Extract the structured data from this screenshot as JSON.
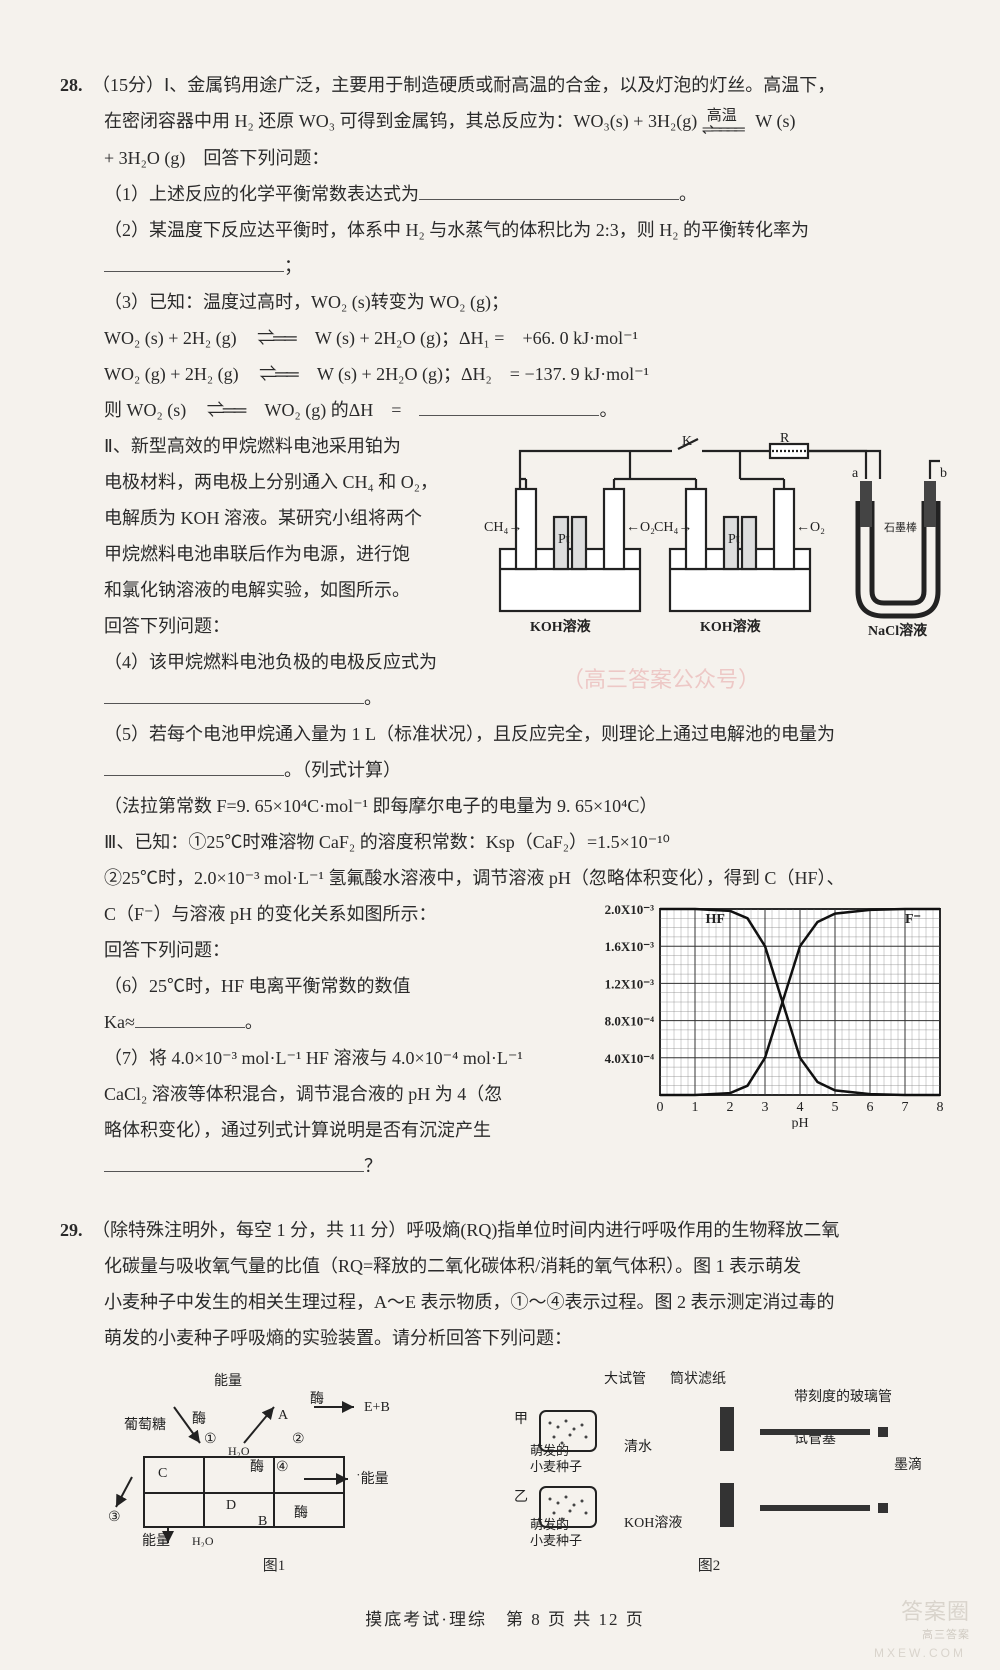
{
  "footer": {
    "text": "摸底考试·理综　第 8 页 共 12 页"
  },
  "watermark": {
    "logo": "答案圈",
    "top": "高三答案",
    "sub": "MXEW.COM",
    "mid": "（高三答案公众号）"
  },
  "q28": {
    "num": "28.",
    "header": "（15分）Ⅰ、金属钨用途广泛，主要用于制造硬质或耐高温的合金，以及灯泡的灯丝。高温下，",
    "l1a": "在密闭容器中用 H₂ 还原 WO₃ 可得到金属钨，其总反应为：WO₃(s) + 3H₂(g)",
    "l1b": "W (s)",
    "l1_condition": "高温",
    "l1_arrow": "⇌",
    "l2": "+ 3H₂O (g)　回答下列问题：",
    "p1": "（1）上述反应的化学平衡常数表达式为",
    "p2a": "（2）某温度下反应达平衡时，体系中 H₂ 与水蒸气的体积比为 2:3，则 H₂ 的平衡转化率为",
    "p2b": "；",
    "p3a": "（3）已知：温度过高时，WO₂ (s)转变为 WO₂ (g)；",
    "p3b": "WO₂ (s) + 2H₂ (g)",
    "p3b_arrow": "⇌",
    "p3b_rhs": "W (s) + 2H₂O (g)；ΔH₁ =　+66. 0 kJ·mol⁻¹",
    "p3c": "WO₂ (g) + 2H₂ (g)",
    "p3c_arrow": "⇌",
    "p3c_rhs": "W (s) + 2H₂O (g)；ΔH₂　= −137. 9 kJ·mol⁻¹",
    "p3d_lhs": "则 WO₂ (s)",
    "p3d_arrow": "⇌",
    "p3d_rhs": "WO₂ (g) 的ΔH　=　",
    "p3d_end": "。",
    "s2a": "Ⅱ、新型高效的甲烷燃料电池采用铂为",
    "s2b": "电极材料，两电极上分别通入 CH₄ 和 O₂，",
    "s2c": "电解质为 KOH 溶液。某研究小组将两个",
    "s2d": "甲烷燃料电池串联后作为电源，进行饱",
    "s2e": "和氯化钠溶液的电解实验，如图所示。",
    "s2f": "回答下列问题：",
    "p4a": "（4）该甲烷燃料电池负极的电极反应式为",
    "p4b": "。",
    "p5a": "（5）若每个电池甲烷通入量为 1 L（标准状况），且反应完全，则理论上通过电解池的电量为",
    "p5b": "。（列式计算）",
    "p5c": "（法拉第常数 F=9. 65×10⁴C·mol⁻¹ 即每摩尔电子的电量为 9. 65×10⁴C）",
    "s3a": "Ⅲ、已知：①25℃时难溶物 CaF₂ 的溶度积常数：Ksp（CaF₂）=1.5×10⁻¹⁰",
    "s3b": "②25℃时，2.0×10⁻³ mol·L⁻¹ 氢氟酸水溶液中，调节溶液 pH（忽略体积变化），得到 C（HF）、",
    "s3c": "C（F⁻）与溶液 pH 的变化关系如图所示：",
    "s3d": "回答下列问题：",
    "p6a": "（6）25℃时，HF 电离平衡常数的数值",
    "p6b": "Ka≈",
    "p6c": "。",
    "p7a": "（7）将 4.0×10⁻³ mol·L⁻¹ HF 溶液与 4.0×10⁻⁴ mol·L⁻¹",
    "p7b": "CaCl₂ 溶液等体积混合，调节混合液的 pH 为 4（忽",
    "p7c": "略体积变化），通过列式计算说明是否有沉淀产生",
    "p7d": "？",
    "circuit": {
      "labels": {
        "k": "K",
        "r": "R",
        "ch4": "CH₄",
        "o2": "O₂",
        "pt": "Pt",
        "koh": "KOH溶液",
        "nacl": "NaCl溶液",
        "a": "a",
        "b": "b",
        "graphite": "石墨棒"
      },
      "colors": {
        "stroke": "#222",
        "fill_light": "#fff",
        "fill_tube": "#d9d9d9"
      }
    },
    "chart": {
      "type": "line",
      "xlabel": "pH",
      "ylabels": [
        "2.0X10⁻³",
        "1.6X10⁻³",
        "1.2X10⁻³",
        "8.0X10⁻⁴",
        "4.0X10⁻⁴"
      ],
      "yticks": [
        2.0,
        1.6,
        1.2,
        0.8,
        0.4,
        0
      ],
      "xticks": [
        0,
        1,
        2,
        3,
        4,
        5,
        6,
        7,
        8
      ],
      "series": [
        {
          "name": "HF",
          "label": "HF",
          "color": "#111",
          "points": [
            [
              0,
              2.0
            ],
            [
              1,
              2.0
            ],
            [
              2,
              1.98
            ],
            [
              2.5,
              1.9
            ],
            [
              3,
              1.6
            ],
            [
              3.5,
              1.0
            ],
            [
              4,
              0.4
            ],
            [
              4.5,
              0.14
            ],
            [
              5,
              0.05
            ],
            [
              6,
              0.01
            ],
            [
              7,
              0
            ],
            [
              8,
              0
            ]
          ]
        },
        {
          "name": "F-",
          "label": "F⁻",
          "color": "#111",
          "points": [
            [
              0,
              0
            ],
            [
              1,
              0
            ],
            [
              2,
              0.02
            ],
            [
              2.5,
              0.1
            ],
            [
              3,
              0.4
            ],
            [
              3.5,
              1.0
            ],
            [
              4,
              1.6
            ],
            [
              4.5,
              1.86
            ],
            [
              5,
              1.95
            ],
            [
              6,
              1.99
            ],
            [
              7,
              2.0
            ],
            [
              8,
              2.0
            ]
          ]
        }
      ],
      "xlim": [
        0,
        8
      ],
      "ylim": [
        0,
        2.0
      ],
      "bg": "#fff",
      "grid": "#888"
    }
  },
  "q29": {
    "num": "29.",
    "header": "（除特殊注明外，每空 1 分，共 11 分）呼吸熵(RQ)指单位时间内进行呼吸作用的生物释放二氧",
    "l2": "化碳量与吸收氧气量的比值（RQ=释放的二氧化碳体积/消耗的氧气体积）。图 1 表示萌发",
    "l3": "小麦种子中发生的相关生理过程，A～E 表示物质，①～④表示过程。图 2 表示测定消过毒的",
    "l4": "萌发的小麦种子呼吸熵的实验装置。请分析回答下列问题：",
    "fig1": {
      "caption": "图1",
      "labels": {
        "glu": "葡萄糖",
        "mei": "酶",
        "eng": "能量",
        "h2o": "H₂O",
        "a": "A",
        "b": "B",
        "c": "C",
        "d": "D",
        "eb": "E+B",
        "n1": "①",
        "n2": "②",
        "n3": "③",
        "n4": "④"
      }
    },
    "fig2": {
      "caption": "图2",
      "labels": {
        "tube": "大试管",
        "filter": "筒状滤纸",
        "glass": "带刻度的玻璃管",
        "stopper": "试管塞",
        "ink": "墨滴",
        "jia": "甲",
        "yi": "乙",
        "seed": "萌发的\n小麦种子",
        "water": "清水",
        "koh": "KOH溶液"
      }
    }
  }
}
